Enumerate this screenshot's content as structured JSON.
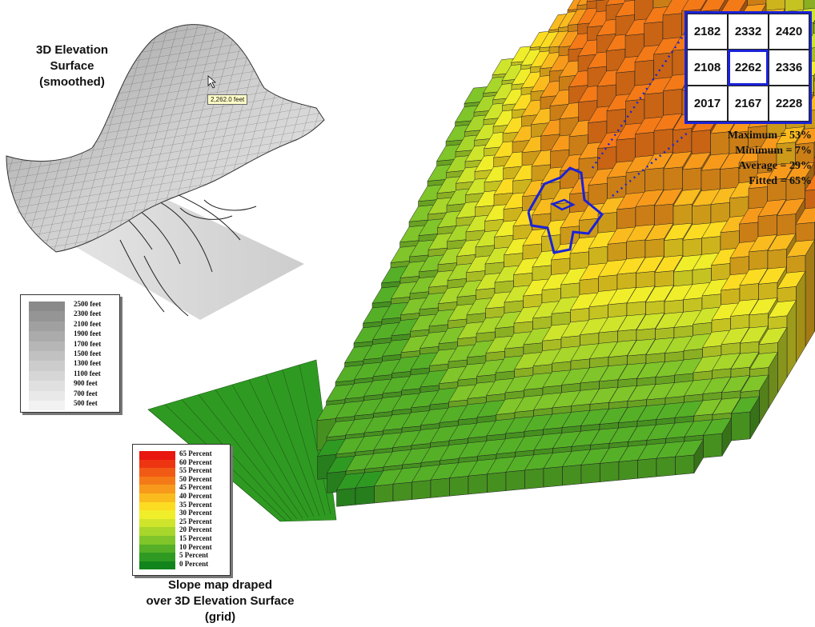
{
  "elevation_surface": {
    "title_lines": [
      "3D Elevation",
      "Surface",
      "(smoothed)"
    ],
    "tooltip": "2,262.0 feet"
  },
  "elevation_legend": {
    "labels": [
      "2500 feet",
      "2300 feet",
      "2100 feet",
      "1900 feet",
      "1700 feet",
      "1500 feet",
      "1300 feet",
      "1100 feet",
      "900 feet",
      "700 feet",
      "500 feet"
    ],
    "colors": [
      "#8a8a8a",
      "#959595",
      "#a0a0a0",
      "#ababab",
      "#b6b6b6",
      "#c1c1c1",
      "#cccccc",
      "#d6d6d6",
      "#e0e0e0",
      "#e9e9e9",
      "#f2f2f2"
    ]
  },
  "slope_legend": {
    "labels": [
      "65 Percent",
      "60 Percent",
      "55 Percent",
      "50 Percent",
      "45 Percent",
      "40 Percent",
      "35 Percent",
      "30 Percent",
      "25 Percent",
      "20 Percent",
      "15 Percent",
      "10 Percent",
      "5 Percent",
      "0 Percent"
    ],
    "colors": [
      "#e8170f",
      "#ee3512",
      "#f15a15",
      "#f47a18",
      "#f79a1b",
      "#fabb1f",
      "#fbdc22",
      "#f0ee2a",
      "#cfe52c",
      "#a8d62b",
      "#80c52a",
      "#55b027",
      "#2f9a22",
      "#12841c"
    ]
  },
  "slope_map": {
    "title_lines": [
      "Slope map draped",
      "over 3D Elevation Surface",
      "(grid)"
    ]
  },
  "elevation_grid": {
    "values": [
      [
        "2182",
        "2332",
        "2420"
      ],
      [
        "2108",
        "2262",
        "2336"
      ],
      [
        "2017",
        "2167",
        "2228"
      ]
    ]
  },
  "stats": {
    "maximum": "Maximum = 53%",
    "minimum": "Minimum = 7%",
    "average": "Average = 29%",
    "fitted": "Fitted = 65%"
  },
  "colors": {
    "highlight_blue": "#1a22d8",
    "wireframe_fill": "#d8d8d8",
    "ground_green": "#2f9a22"
  }
}
